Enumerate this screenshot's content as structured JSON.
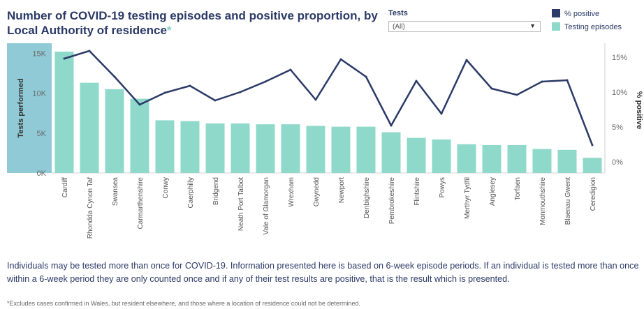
{
  "title": "Number of COVID-19 testing episodes and positive proportion, by Local Authority of residence",
  "title_marker": "*",
  "filter": {
    "label": "Tests",
    "value": "(All)"
  },
  "note": "Individuals may be tested more than once for COVID-19. Information presented here is based on 6-week episode periods. If an individual is tested more than once within a 6-week period they are only counted once and if any of their test results are positive, that is the result which is presented.",
  "footnote": "*Excludes cases confirmed in Wales, but resident elsewhere, and those where a location of residence could not be determined.",
  "colors": {
    "bars": "#8fd9ca",
    "line": "#2b3a67",
    "axis_band": "#8fcad6"
  },
  "chart_data": {
    "type": "bar",
    "categories": [
      "Cardiff",
      "Rhondda Cynon Taf",
      "Swansea",
      "Carmarthenshire",
      "Conwy",
      "Caerphilly",
      "Bridgend",
      "Neath Port Talbot",
      "Vale of Glamorgan",
      "Wrexham",
      "Gwynedd",
      "Newport",
      "Denbighshire",
      "Pembrokeshire",
      "Flintshire",
      "Powys",
      "Merthyr Tydfil",
      "Anglesey",
      "Torfaen",
      "Monmouthshire",
      "Blaenau Gwent",
      "Ceredigion"
    ],
    "series": [
      {
        "name": "Testing episodes",
        "type": "bar",
        "axis": "left",
        "values": [
          15200,
          11300,
          10500,
          9300,
          6600,
          6500,
          6200,
          6200,
          6100,
          6100,
          5900,
          5800,
          5800,
          5100,
          4400,
          4200,
          3600,
          3500,
          3500,
          3000,
          2900,
          1900
        ]
      },
      {
        "name": "% positive",
        "type": "line",
        "axis": "right",
        "values": [
          14.8,
          15.9,
          12.2,
          8.2,
          9.9,
          10.9,
          8.8,
          10.0,
          11.5,
          13.2,
          8.9,
          14.7,
          12.2,
          5.2,
          11.6,
          6.9,
          14.6,
          10.5,
          9.6,
          11.5,
          11.7,
          2.4
        ]
      }
    ],
    "y_left": {
      "label": "Tests performed",
      "range": [
        0,
        16250
      ],
      "ticks": [
        0,
        5000,
        10000,
        15000
      ],
      "tick_labels": [
        "0K",
        "5K",
        "10K",
        "15K"
      ]
    },
    "y_right": {
      "label": "% positive",
      "range": [
        -1.6,
        17
      ],
      "ticks": [
        0,
        5,
        10,
        15
      ],
      "tick_labels": [
        "0%",
        "5%",
        "10%",
        "15%"
      ]
    },
    "legend": {
      "position": "top-right",
      "entries": [
        "% positive",
        "Testing episodes"
      ]
    },
    "grid": false
  }
}
